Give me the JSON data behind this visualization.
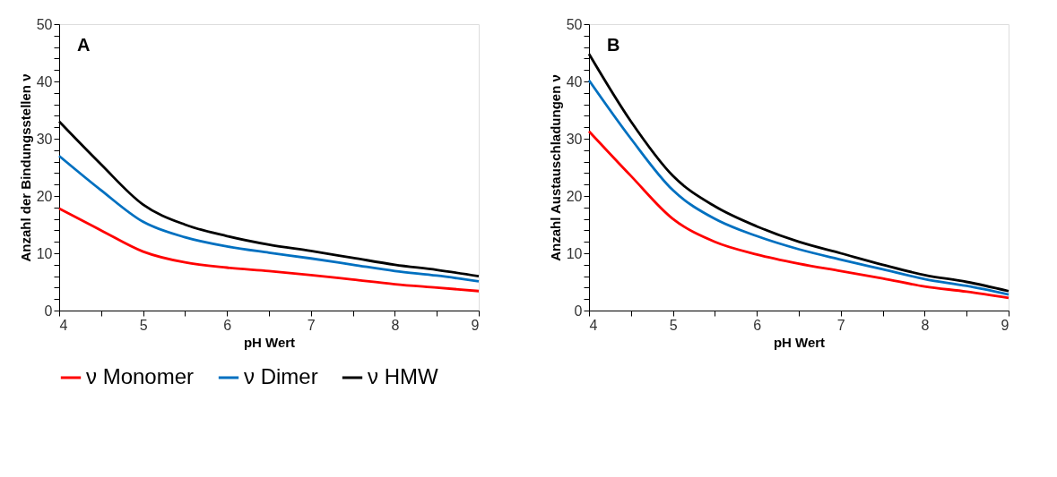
{
  "chart_data": [
    {
      "type": "line",
      "xlabel": "pH Wert",
      "ylabel": "Anzahl der Bindungsstellen ν",
      "annotations": [
        "A"
      ],
      "x": [
        4,
        4.5,
        5,
        5.5,
        6,
        6.5,
        7,
        7.5,
        8,
        8.5,
        9
      ],
      "series": [
        {
          "name": "ν Monomer",
          "color": "#ff0000",
          "values": [
            17.8,
            14,
            10.3,
            8.4,
            7.5,
            6.9,
            6.2,
            5.4,
            4.6,
            4,
            3.4
          ]
        },
        {
          "name": "ν Dimer",
          "color": "#0070c0",
          "values": [
            27,
            21,
            15.5,
            12.8,
            11.2,
            10.1,
            9.1,
            8,
            6.9,
            6.1,
            5.1
          ]
        },
        {
          "name": "ν HMW",
          "color": "#000000",
          "values": [
            33,
            25.5,
            18.5,
            15,
            13,
            11.5,
            10.4,
            9.2,
            8,
            7.1,
            6
          ]
        }
      ],
      "xlim": [
        4,
        9
      ],
      "ylim": [
        0,
        50
      ],
      "xticks": [
        4,
        {
          "value": 4.5,
          "label": null
        },
        5,
        {
          "value": 5.5,
          "label": null
        },
        6,
        {
          "value": 6.5,
          "label": null
        },
        7,
        {
          "value": 7.5,
          "label": null
        },
        8,
        {
          "value": 8.5,
          "label": null
        },
        9
      ],
      "yticks": [
        0,
        {
          "value": 2,
          "label": null
        },
        {
          "value": 4,
          "label": null
        },
        {
          "value": 6,
          "label": null
        },
        {
          "value": 8,
          "label": null
        },
        10,
        {
          "value": 12,
          "label": null
        },
        {
          "value": 14,
          "label": null
        },
        {
          "value": 16,
          "label": null
        },
        {
          "value": 18,
          "label": null
        },
        20,
        {
          "value": 22,
          "label": null
        },
        {
          "value": 24,
          "label": null
        },
        {
          "value": 26,
          "label": null
        },
        {
          "value": 28,
          "label": null
        },
        30,
        {
          "value": 32,
          "label": null
        },
        {
          "value": 34,
          "label": null
        },
        {
          "value": 36,
          "label": null
        },
        {
          "value": 38,
          "label": null
        },
        40,
        {
          "value": 42,
          "label": null
        },
        {
          "value": 44,
          "label": null
        },
        {
          "value": 46,
          "label": null
        },
        {
          "value": 48,
          "label": null
        },
        50
      ],
      "grid": false,
      "legend": "bottom",
      "marker": "none",
      "line_style": "solid"
    },
    {
      "type": "line",
      "xlabel": "pH Wert",
      "ylabel": "Anzahl Austauschladungen ν",
      "annotations": [
        "B"
      ],
      "x": [
        4,
        4.5,
        5,
        5.5,
        6,
        6.5,
        7,
        7.5,
        8,
        8.5,
        9
      ],
      "series": [
        {
          "name": "ν Monomer",
          "color": "#ff0000",
          "values": [
            31.3,
            23.5,
            16,
            12,
            9.8,
            8.2,
            6.9,
            5.6,
            4.2,
            3.3,
            2.2
          ]
        },
        {
          "name": "ν Dimer",
          "color": "#0070c0",
          "values": [
            40.2,
            30,
            21,
            16,
            13,
            10.7,
            8.9,
            7.2,
            5.5,
            4.3,
            2.8
          ]
        },
        {
          "name": "ν HMW",
          "color": "#000000",
          "values": [
            44.8,
            33,
            23.5,
            18.2,
            14.7,
            12,
            10,
            8,
            6.2,
            5,
            3.4
          ]
        }
      ],
      "xlim": [
        4,
        9
      ],
      "ylim": [
        0,
        50
      ],
      "xticks": [
        4,
        {
          "value": 4.5,
          "label": null
        },
        5,
        {
          "value": 5.5,
          "label": null
        },
        6,
        {
          "value": 6.5,
          "label": null
        },
        7,
        {
          "value": 7.5,
          "label": null
        },
        8,
        {
          "value": 8.5,
          "label": null
        },
        9
      ],
      "yticks": [
        0,
        {
          "value": 2,
          "label": null
        },
        {
          "value": 4,
          "label": null
        },
        {
          "value": 6,
          "label": null
        },
        {
          "value": 8,
          "label": null
        },
        10,
        {
          "value": 12,
          "label": null
        },
        {
          "value": 14,
          "label": null
        },
        {
          "value": 16,
          "label": null
        },
        {
          "value": 18,
          "label": null
        },
        20,
        {
          "value": 22,
          "label": null
        },
        {
          "value": 24,
          "label": null
        },
        {
          "value": 26,
          "label": null
        },
        {
          "value": 28,
          "label": null
        },
        30,
        {
          "value": 32,
          "label": null
        },
        {
          "value": 34,
          "label": null
        },
        {
          "value": 36,
          "label": null
        },
        {
          "value": 38,
          "label": null
        },
        40,
        {
          "value": 42,
          "label": null
        },
        {
          "value": 44,
          "label": null
        },
        {
          "value": 46,
          "label": null
        },
        {
          "value": 48,
          "label": null
        },
        50
      ],
      "grid": false,
      "legend": "bottom",
      "marker": "none",
      "line_style": "solid"
    }
  ]
}
